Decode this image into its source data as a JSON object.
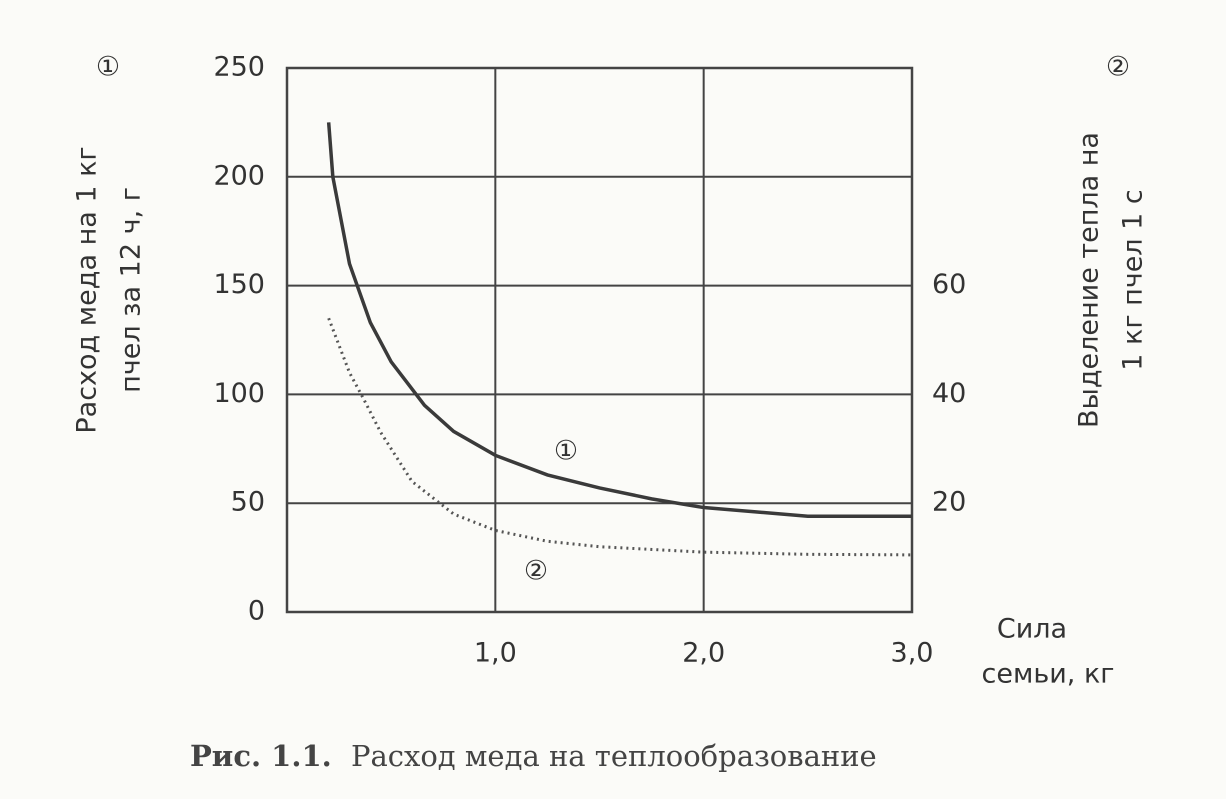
{
  "chart_data": {
    "type": "line",
    "y_label": [
      "Расход меда на 1 кг",
      "пчел за 12 ч, г"
    ],
    "y_marker": "①",
    "y2_label": [
      "Выделение тепла на",
      "1 кг пчел 1 с"
    ],
    "y2_marker": "②",
    "x_label": [
      "Сила",
      "семьи, кг"
    ],
    "caption": {
      "label": "Рис. 1.1.",
      "text": "Расход меда на теплообразование"
    },
    "xlim": [
      0,
      3
    ],
    "xticks": [
      {
        "value": 1,
        "label": "1,0"
      },
      {
        "value": 2,
        "label": "2,0"
      },
      {
        "value": 3,
        "label": "3,0"
      }
    ],
    "ylim": [
      0,
      250
    ],
    "yticks": [
      0,
      50,
      100,
      150,
      200,
      250
    ],
    "y2lim": [
      0,
      100
    ],
    "y2ticks": [
      20,
      40,
      60
    ],
    "grid": true,
    "series": [
      {
        "name": "①",
        "color": "#3a3a3a",
        "dash": "solid",
        "x": [
          0.2,
          0.22,
          0.3,
          0.4,
          0.5,
          0.66,
          0.8,
          1.0,
          1.25,
          1.5,
          1.75,
          2.0,
          2.25,
          2.5,
          2.75,
          3.0
        ],
        "values": [
          225,
          200,
          160,
          133,
          115,
          95,
          83,
          72,
          63,
          57,
          52,
          48,
          46,
          44,
          44,
          44
        ]
      },
      {
        "name": "②",
        "color": "#555555",
        "dash": "dotted",
        "axis": "y2",
        "x": [
          0.2,
          0.25,
          0.3,
          0.37,
          0.45,
          0.6,
          0.8,
          1.0,
          1.25,
          1.5,
          2.0,
          2.5,
          3.0
        ],
        "values": [
          54,
          49,
          44,
          39,
          33,
          24,
          18,
          15,
          13,
          12,
          11,
          10.6,
          10.5
        ]
      }
    ]
  }
}
